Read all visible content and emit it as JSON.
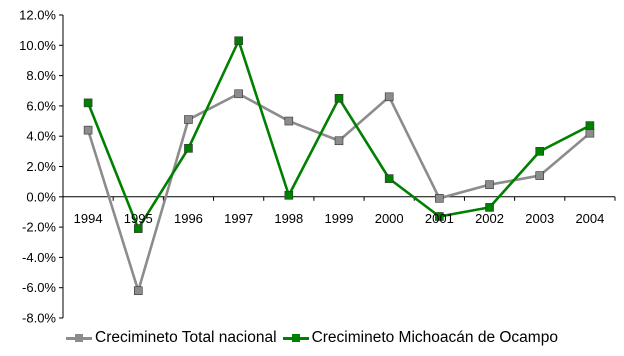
{
  "chart_data": {
    "type": "line",
    "categories": [
      "1994",
      "1995",
      "1996",
      "1997",
      "1998",
      "1999",
      "2000",
      "2001",
      "2002",
      "2003",
      "2004"
    ],
    "series": [
      {
        "name": "Crecimineto Total nacional",
        "color": "#8c8c8c",
        "values": [
          4.4,
          -6.2,
          5.1,
          6.8,
          5.0,
          3.7,
          6.6,
          -0.1,
          0.8,
          1.4,
          4.2
        ]
      },
      {
        "name": "Crecimineto Michoacán de Ocampo",
        "color": "#008000",
        "values": [
          6.2,
          -2.1,
          3.2,
          10.3,
          0.1,
          6.5,
          1.2,
          -1.3,
          -0.7,
          3.0,
          4.7
        ]
      }
    ],
    "ylim": [
      -8.0,
      12.0
    ],
    "ytick_values": [
      -8,
      -6,
      -4,
      -2,
      0,
      2,
      4,
      6,
      8,
      10,
      12
    ],
    "ytick_labels": [
      "-8.0%",
      "-6.0%",
      "-4.0%",
      "-2.0%",
      "0.0%",
      "2.0%",
      "4.0%",
      "6.0%",
      "8.0%",
      "10.0%",
      "12.0%"
    ],
    "grid": false,
    "legend_position": "bottom"
  },
  "legend": {
    "items": [
      {
        "label": "Crecimineto Total nacional"
      },
      {
        "label": "Crecimineto Michoacán de Ocampo"
      }
    ]
  }
}
